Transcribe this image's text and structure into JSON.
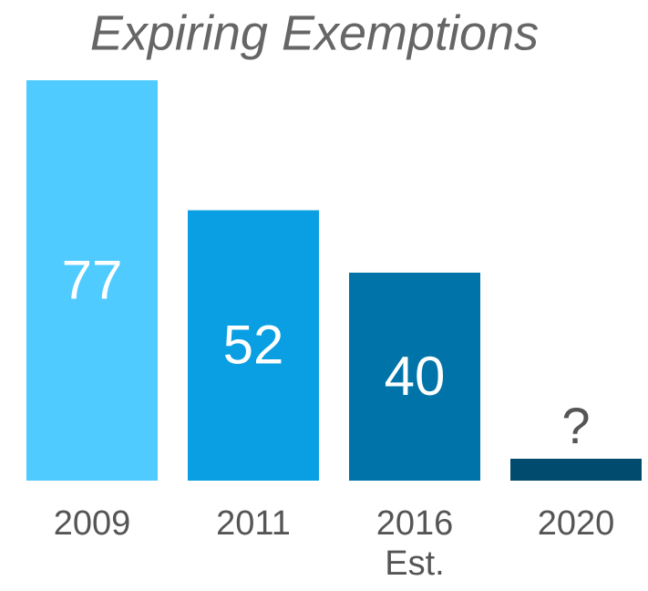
{
  "chart_data": {
    "type": "bar",
    "title": "Expiring Exemptions",
    "categories": [
      "2009",
      "2011",
      "2016\nEst.",
      "2020"
    ],
    "values": [
      77,
      52,
      40,
      null
    ],
    "value_labels": [
      "77",
      "52",
      "40",
      "?"
    ],
    "colors": [
      "#4fcbff",
      "#0a9fe2",
      "#0074a8",
      "#004b6e"
    ]
  }
}
